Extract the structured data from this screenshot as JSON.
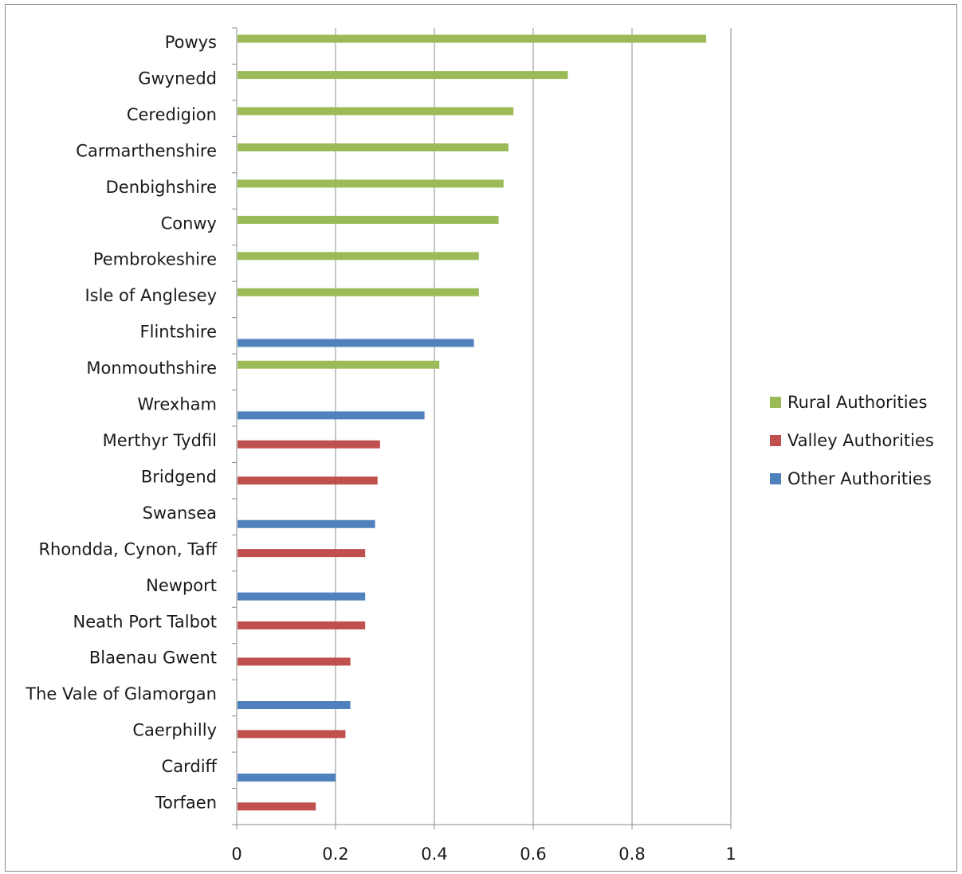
{
  "chart_data": {
    "type": "bar",
    "orientation": "horizontal",
    "title": "",
    "xlabel": "",
    "ylabel": "",
    "xlim": [
      0,
      1
    ],
    "x_ticks": [
      "0",
      "0.2",
      "0.4",
      "0.6",
      "0.8",
      "1"
    ],
    "x_tick_values": [
      0,
      0.2,
      0.4,
      0.6,
      0.8,
      1
    ],
    "grid": "vertical",
    "legend_position": "right",
    "categories": [
      "Powys",
      "Gwynedd",
      "Ceredigion",
      "Carmarthenshire",
      "Denbighshire",
      "Conwy",
      "Pembrokeshire",
      "Isle of Anglesey",
      "Flintshire",
      "Monmouthshire",
      "Wrexham",
      "Merthyr Tydfil",
      "Bridgend",
      "Swansea",
      "Rhondda, Cynon, Taff",
      "Newport",
      "Neath Port Talbot",
      "Blaenau Gwent",
      "The Vale of Glamorgan",
      "Caerphilly",
      "Cardiff",
      "Torfaen"
    ],
    "series": [
      {
        "name": "Rural Authorities",
        "color": "#9bbb59",
        "values": [
          0.95,
          0.67,
          0.56,
          0.55,
          0.54,
          0.53,
          0.49,
          0.49,
          null,
          0.41,
          null,
          null,
          null,
          null,
          null,
          null,
          null,
          null,
          null,
          null,
          null,
          null
        ]
      },
      {
        "name": "Valley Authorities",
        "color": "#c0504d",
        "values": [
          null,
          null,
          null,
          null,
          null,
          null,
          null,
          null,
          null,
          null,
          null,
          0.29,
          0.285,
          null,
          0.26,
          null,
          0.26,
          0.23,
          null,
          0.22,
          null,
          0.16
        ]
      },
      {
        "name": "Other Authorities",
        "color": "#4f81bd",
        "values": [
          null,
          null,
          null,
          null,
          null,
          null,
          null,
          null,
          0.48,
          null,
          0.38,
          null,
          null,
          0.28,
          null,
          0.26,
          null,
          null,
          0.23,
          null,
          0.2,
          null
        ]
      }
    ]
  }
}
